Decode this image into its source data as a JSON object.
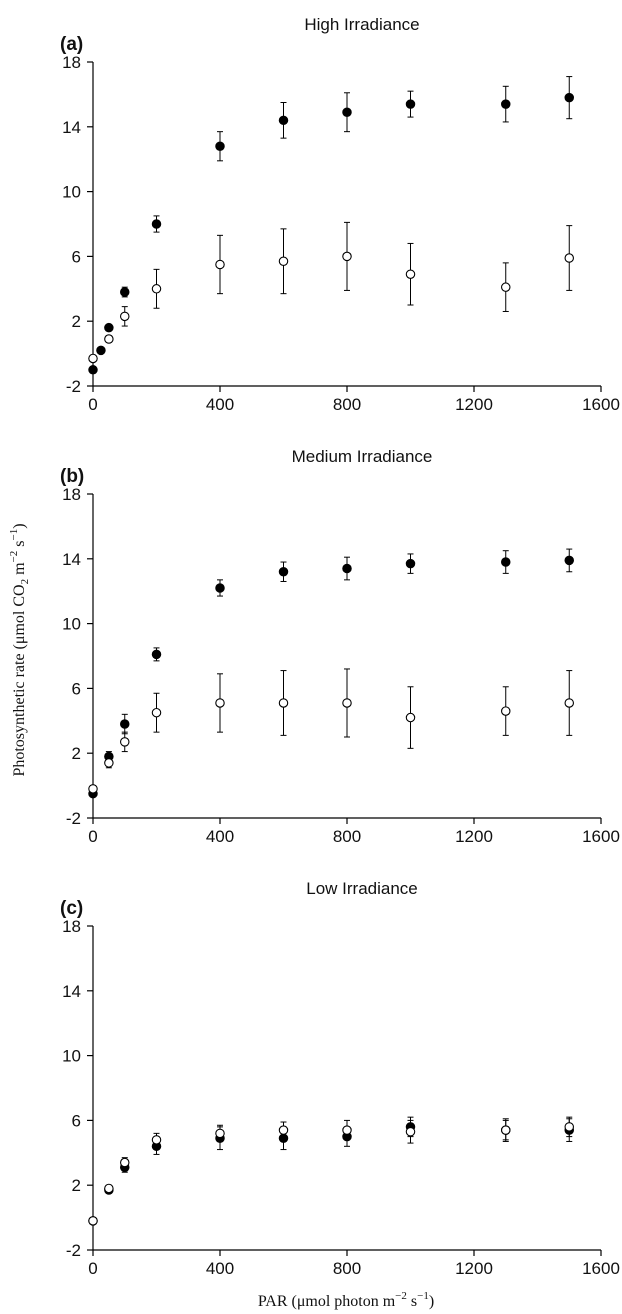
{
  "figure": {
    "ylabel_main": "Photosynthetic rate (μmol CO",
    "ylabel_sub2": "2",
    "ylabel_mid": " m",
    "ylabel_sup1": "−2",
    "ylabel_mid2": " s",
    "ylabel_sup2": "−1",
    "ylabel_end": ")",
    "xlabel_main": "PAR (μmol photon m",
    "xlabel_sup1": "−2",
    "xlabel_mid": " s",
    "xlabel_sup2": "−1",
    "xlabel_end": ")"
  },
  "chart_data": [
    {
      "type": "scatter",
      "panel_label": "(a)",
      "title": "High Irradiance",
      "xlim": [
        0,
        1600
      ],
      "ylim": [
        -2,
        18
      ],
      "xticks": [
        0,
        400,
        800,
        1200,
        1600
      ],
      "yticks": [
        -2,
        2,
        6,
        10,
        14,
        18
      ],
      "grid": false,
      "series": [
        {
          "marker": "filled",
          "points": [
            {
              "x": 0,
              "y": -1.0,
              "err": 0.2
            },
            {
              "x": 25,
              "y": 0.2,
              "err": 0.15
            },
            {
              "x": 50,
              "y": 1.6,
              "err": 0.2
            },
            {
              "x": 100,
              "y": 3.8,
              "err": 0.3
            },
            {
              "x": 200,
              "y": 8.0,
              "err": 0.5
            },
            {
              "x": 400,
              "y": 12.8,
              "err": 0.9
            },
            {
              "x": 600,
              "y": 14.4,
              "err": 1.1
            },
            {
              "x": 800,
              "y": 14.9,
              "err": 1.2
            },
            {
              "x": 1000,
              "y": 15.4,
              "err": 0.8
            },
            {
              "x": 1300,
              "y": 15.4,
              "err": 1.1
            },
            {
              "x": 1500,
              "y": 15.8,
              "err": 1.3
            }
          ]
        },
        {
          "marker": "open",
          "points": [
            {
              "x": 0,
              "y": -0.3,
              "err": 0.2
            },
            {
              "x": 50,
              "y": 0.9,
              "err": 0.2
            },
            {
              "x": 100,
              "y": 2.3,
              "err": 0.6
            },
            {
              "x": 200,
              "y": 4.0,
              "err": 1.2
            },
            {
              "x": 400,
              "y": 5.5,
              "err": 1.8
            },
            {
              "x": 600,
              "y": 5.7,
              "err": 2.0
            },
            {
              "x": 800,
              "y": 6.0,
              "err": 2.1
            },
            {
              "x": 1000,
              "y": 4.9,
              "err": 1.9
            },
            {
              "x": 1300,
              "y": 4.1,
              "err": 1.5
            },
            {
              "x": 1500,
              "y": 5.9,
              "err": 2.0
            }
          ]
        }
      ]
    },
    {
      "type": "scatter",
      "panel_label": "(b)",
      "title": "Medium Irradiance",
      "xlim": [
        0,
        1600
      ],
      "ylim": [
        -2,
        18
      ],
      "xticks": [
        0,
        400,
        800,
        1200,
        1600
      ],
      "yticks": [
        -2,
        2,
        6,
        10,
        14,
        18
      ],
      "grid": false,
      "series": [
        {
          "marker": "filled",
          "points": [
            {
              "x": 0,
              "y": -0.5,
              "err": 0.2
            },
            {
              "x": 50,
              "y": 1.8,
              "err": 0.3
            },
            {
              "x": 100,
              "y": 3.8,
              "err": 0.6
            },
            {
              "x": 200,
              "y": 8.1,
              "err": 0.4
            },
            {
              "x": 400,
              "y": 12.2,
              "err": 0.5
            },
            {
              "x": 600,
              "y": 13.2,
              "err": 0.6
            },
            {
              "x": 800,
              "y": 13.4,
              "err": 0.7
            },
            {
              "x": 1000,
              "y": 13.7,
              "err": 0.6
            },
            {
              "x": 1300,
              "y": 13.8,
              "err": 0.7
            },
            {
              "x": 1500,
              "y": 13.9,
              "err": 0.7
            }
          ]
        },
        {
          "marker": "open",
          "points": [
            {
              "x": 0,
              "y": -0.2,
              "err": 0.2
            },
            {
              "x": 50,
              "y": 1.4,
              "err": 0.3
            },
            {
              "x": 100,
              "y": 2.7,
              "err": 0.6
            },
            {
              "x": 200,
              "y": 4.5,
              "err": 1.2
            },
            {
              "x": 400,
              "y": 5.1,
              "err": 1.8
            },
            {
              "x": 600,
              "y": 5.1,
              "err": 2.0
            },
            {
              "x": 800,
              "y": 5.1,
              "err": 2.1
            },
            {
              "x": 1000,
              "y": 4.2,
              "err": 1.9
            },
            {
              "x": 1300,
              "y": 4.6,
              "err": 1.5
            },
            {
              "x": 1500,
              "y": 5.1,
              "err": 2.0
            }
          ]
        }
      ]
    },
    {
      "type": "scatter",
      "panel_label": "(c)",
      "title": "Low Irradiance",
      "xlim": [
        0,
        1600
      ],
      "ylim": [
        -2,
        18
      ],
      "xticks": [
        0,
        400,
        800,
        1200,
        1600
      ],
      "yticks": [
        -2,
        2,
        6,
        10,
        14,
        18
      ],
      "grid": false,
      "series": [
        {
          "marker": "filled",
          "points": [
            {
              "x": 0,
              "y": -0.2,
              "err": 0.15
            },
            {
              "x": 50,
              "y": 1.7,
              "err": 0.2
            },
            {
              "x": 100,
              "y": 3.1,
              "err": 0.3
            },
            {
              "x": 200,
              "y": 4.4,
              "err": 0.5
            },
            {
              "x": 400,
              "y": 4.9,
              "err": 0.7
            },
            {
              "x": 600,
              "y": 4.9,
              "err": 0.7
            },
            {
              "x": 800,
              "y": 5.0,
              "err": 0.6
            },
            {
              "x": 1000,
              "y": 5.6,
              "err": 0.6
            },
            {
              "x": 1300,
              "y": 5.4,
              "err": 0.7
            },
            {
              "x": 1500,
              "y": 5.4,
              "err": 0.7
            }
          ]
        },
        {
          "marker": "open",
          "points": [
            {
              "x": 0,
              "y": -0.2,
              "err": 0.1
            },
            {
              "x": 50,
              "y": 1.8,
              "err": 0.2
            },
            {
              "x": 100,
              "y": 3.4,
              "err": 0.3
            },
            {
              "x": 200,
              "y": 4.8,
              "err": 0.4
            },
            {
              "x": 400,
              "y": 5.2,
              "err": 0.5
            },
            {
              "x": 600,
              "y": 5.4,
              "err": 0.5
            },
            {
              "x": 800,
              "y": 5.4,
              "err": 0.6
            },
            {
              "x": 1000,
              "y": 5.3,
              "err": 0.7
            },
            {
              "x": 1300,
              "y": 5.4,
              "err": 0.6
            },
            {
              "x": 1500,
              "y": 5.6,
              "err": 0.6
            }
          ]
        }
      ]
    }
  ]
}
